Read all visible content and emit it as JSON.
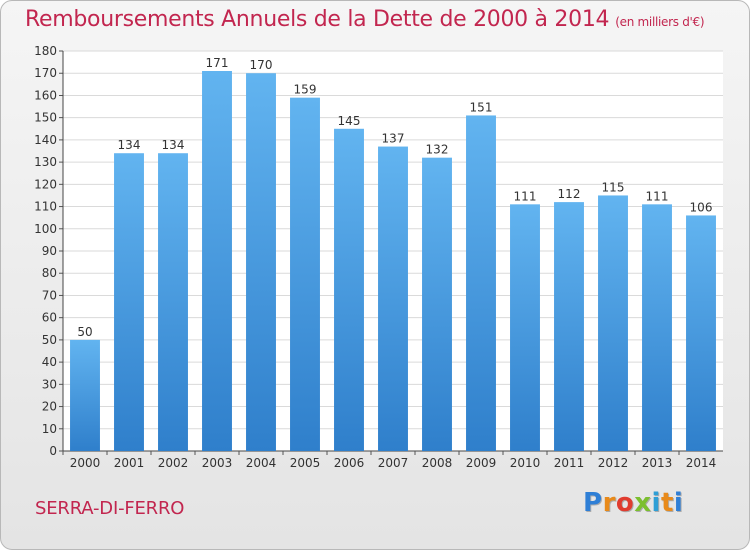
{
  "chart_data": {
    "type": "bar",
    "title": "Remboursements Annuels de la Dette de 2000 à 2014",
    "unit_label": "(en milliers d'€)",
    "categories": [
      "2000",
      "2001",
      "2002",
      "2003",
      "2004",
      "2005",
      "2006",
      "2007",
      "2008",
      "2009",
      "2010",
      "2011",
      "2012",
      "2013",
      "2014"
    ],
    "values": [
      50,
      134,
      134,
      171,
      170,
      159,
      145,
      137,
      132,
      151,
      111,
      112,
      115,
      111,
      106
    ],
    "ylim": [
      0,
      180
    ],
    "ytick_step": 10,
    "xlabel": "",
    "ylabel": "",
    "grid": true,
    "bar_color": "#4f9fe0"
  },
  "footer": {
    "commune": "SERRA-DI-FERRO",
    "logo_letters": [
      "P",
      "r",
      "o",
      "x",
      "i",
      "t",
      "i"
    ],
    "logo_colors": [
      "#2f7fd6",
      "#e88a1a",
      "#e03c2f",
      "#7cbf2f",
      "#2f9fd6",
      "#e88a1a",
      "#2f7fd6"
    ]
  }
}
